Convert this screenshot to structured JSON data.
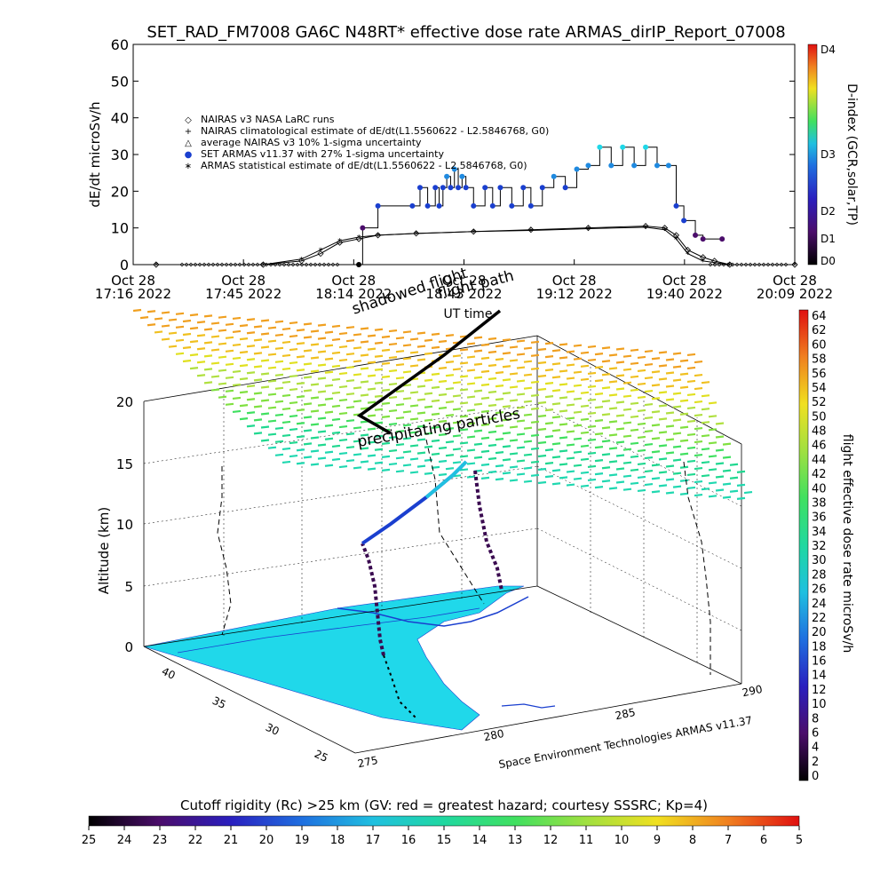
{
  "title": "SET_RAD_FM7008  GA6C N48RT* effective dose rate ARMAS_dirIP_Report_07008",
  "top_chart": {
    "ylabel": "dE/dt microSv/h",
    "y_ticks": [
      "0",
      "10",
      "20",
      "30",
      "40",
      "50",
      "60"
    ],
    "x_ticks": [
      {
        "date": "Oct 28",
        "time": "17:16 2022"
      },
      {
        "date": "Oct 28",
        "time": "17:45 2022"
      },
      {
        "date": "Oct 28",
        "time": "18:14 2022"
      },
      {
        "date": "Oct 28",
        "time": "18:43 2022"
      },
      {
        "date": "Oct 28",
        "time": "19:12 2022"
      },
      {
        "date": "Oct 28",
        "time": "19:40 2022"
      },
      {
        "date": "Oct 28",
        "time": "20:09 2022"
      }
    ],
    "legend": [
      {
        "symbol": "◇",
        "text": "NAIRAS v3 NASA LaRC runs"
      },
      {
        "symbol": "+",
        "text": "NAIRAS climatological estimate of dE/dt(L1.5560622 - L2.5846768, G0)"
      },
      {
        "symbol": "△",
        "text": "average NAIRAS v3 10% 1-sigma uncertainty"
      },
      {
        "symbol": "●",
        "text": "SET ARMAS v11.37 with 27% 1-sigma uncertainty"
      },
      {
        "symbol": "∗",
        "text": "ARMAS statistical estimate of dE/dt(L1.5560622 - L2.5846768, G0)"
      }
    ],
    "right_label": "D-index (GCR,solar,TP)",
    "right_ticks": [
      "D0",
      "D1",
      "D2",
      "D3",
      "D4"
    ],
    "overlay_texts": {
      "flight": "flight path",
      "shadowed": "shadowed flight",
      "ut": "UT time"
    }
  },
  "map3d": {
    "zlabel": "Altitude (km)",
    "z_ticks": [
      "0",
      "5",
      "10",
      "15",
      "20"
    ],
    "lat_ticks": [
      "40",
      "35",
      "30",
      "25"
    ],
    "lon_ticks": [
      "275",
      "280",
      "285",
      "290"
    ],
    "precip_label": "precipitating particles",
    "credit": "Space Environment Technologies ARMAS v11.37"
  },
  "right_colorbar": {
    "label": "flight effective dose rate microSv/h",
    "ticks": [
      "64",
      "62",
      "60",
      "58",
      "56",
      "54",
      "52",
      "50",
      "48",
      "46",
      "44",
      "42",
      "40",
      "38",
      "36",
      "34",
      "32",
      "30",
      "28",
      "26",
      "24",
      "22",
      "20",
      "18",
      "16",
      "14",
      "12",
      "10",
      "8",
      "6",
      "4",
      "2",
      "0"
    ]
  },
  "bottom_colorbar": {
    "title": "Cutoff rigidity (Rc) >25 km (GV: red = greatest hazard; courtesy SSSRC; Kp=4)",
    "ticks": [
      "25",
      "24",
      "23",
      "22",
      "21",
      "20",
      "19",
      "18",
      "17",
      "16",
      "15",
      "14",
      "13",
      "12",
      "11",
      "10",
      "9",
      "8",
      "7",
      "6",
      "5"
    ]
  },
  "chart_data": {
    "type": "line",
    "x_unit": "UT time (Oct 28 2022)",
    "series": [
      {
        "name": "SET ARMAS v11.37 with 27% 1-sigma uncertainty",
        "color": "#1a3fcf",
        "x": [
          "18:15",
          "18:16",
          "18:20",
          "18:29",
          "18:31",
          "18:33",
          "18:35",
          "18:36",
          "18:37",
          "18:38",
          "18:39",
          "18:40",
          "18:41",
          "18:42",
          "18:43",
          "18:45",
          "18:48",
          "18:50",
          "18:52",
          "18:55",
          "18:58",
          "19:00",
          "19:03",
          "19:06",
          "19:09",
          "19:12",
          "19:15",
          "19:18",
          "19:21",
          "19:24",
          "19:27",
          "19:30",
          "19:33",
          "19:36",
          "19:38",
          "19:40",
          "19:43",
          "19:45",
          "19:50"
        ],
        "y": [
          0,
          10,
          16,
          16,
          21,
          16,
          21,
          16,
          21,
          24,
          21,
          26,
          21,
          24,
          21,
          16,
          21,
          16,
          21,
          16,
          21,
          16,
          21,
          24,
          21,
          26,
          27,
          32,
          27,
          32,
          27,
          32,
          27,
          27,
          16,
          12,
          8,
          7,
          7
        ]
      },
      {
        "name": "NAIRAS v3 NASA LaRC runs",
        "color": "#000000",
        "x": [
          "17:22",
          "17:50",
          "18:00",
          "18:05",
          "18:10",
          "18:15",
          "18:20",
          "18:30",
          "18:45",
          "19:00",
          "19:15",
          "19:30",
          "19:35",
          "19:38",
          "19:41",
          "19:45",
          "19:48",
          "19:52",
          "20:09"
        ],
        "y": [
          0,
          0,
          1,
          3,
          6,
          7,
          8,
          8.5,
          9,
          9.5,
          10,
          10.5,
          10,
          8,
          4,
          2,
          1,
          0,
          0
        ]
      },
      {
        "name": "ARMAS statistical estimate of dE/dt(L1.5560622 - L2.5846768, G0)",
        "color": "#000000",
        "x": [
          "17:22",
          "17:50",
          "18:00",
          "18:05",
          "18:10",
          "18:15",
          "18:20",
          "18:30",
          "18:45",
          "19:00",
          "19:15",
          "19:30",
          "19:35",
          "19:38",
          "19:41",
          "19:45",
          "19:52",
          "20:09"
        ],
        "y": [
          0,
          0,
          1.5,
          4,
          6.5,
          7.5,
          8,
          8.5,
          9,
          9.3,
          9.8,
          10.2,
          9.5,
          7,
          3,
          1,
          0,
          0
        ]
      }
    ],
    "xlim": [
      "17:16",
      "20:09"
    ],
    "ylim": [
      0,
      60
    ]
  }
}
